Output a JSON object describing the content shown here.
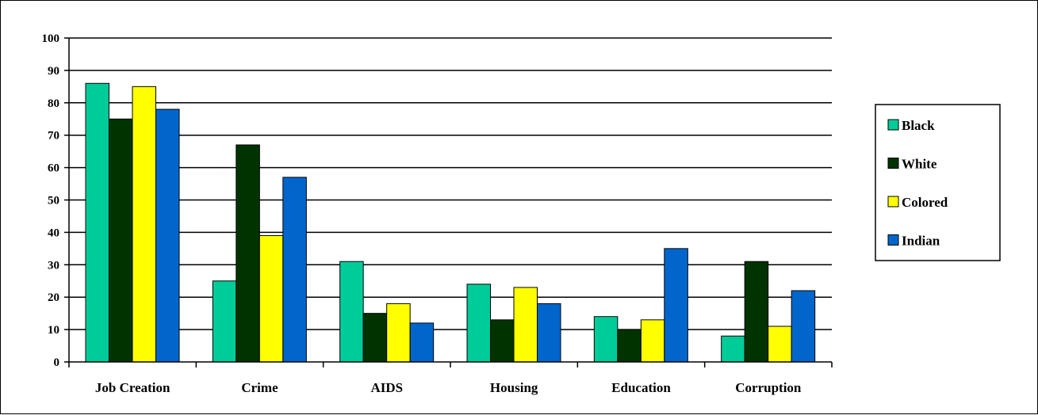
{
  "chart_data": {
    "type": "bar",
    "title": "",
    "xlabel": "",
    "ylabel": "",
    "categories": [
      "Job Creation",
      "Crime",
      "AIDS",
      "Housing",
      "Education",
      "Corruption"
    ],
    "series": [
      {
        "name": "Black",
        "color": "#00cc99",
        "values": [
          86,
          25,
          31,
          24,
          14,
          8
        ]
      },
      {
        "name": "White",
        "color": "#003300",
        "values": [
          75,
          67,
          15,
          13,
          10,
          31
        ]
      },
      {
        "name": "Colored",
        "color": "#ffff00",
        "values": [
          85,
          39,
          18,
          23,
          13,
          11
        ]
      },
      {
        "name": "Indian",
        "color": "#0066cc",
        "values": [
          78,
          57,
          12,
          18,
          35,
          22
        ]
      }
    ],
    "ylim": [
      0,
      100
    ],
    "yticks": [
      0,
      10,
      20,
      30,
      40,
      50,
      60,
      70,
      80,
      90,
      100
    ],
    "grid": true,
    "legend_position": "right"
  }
}
